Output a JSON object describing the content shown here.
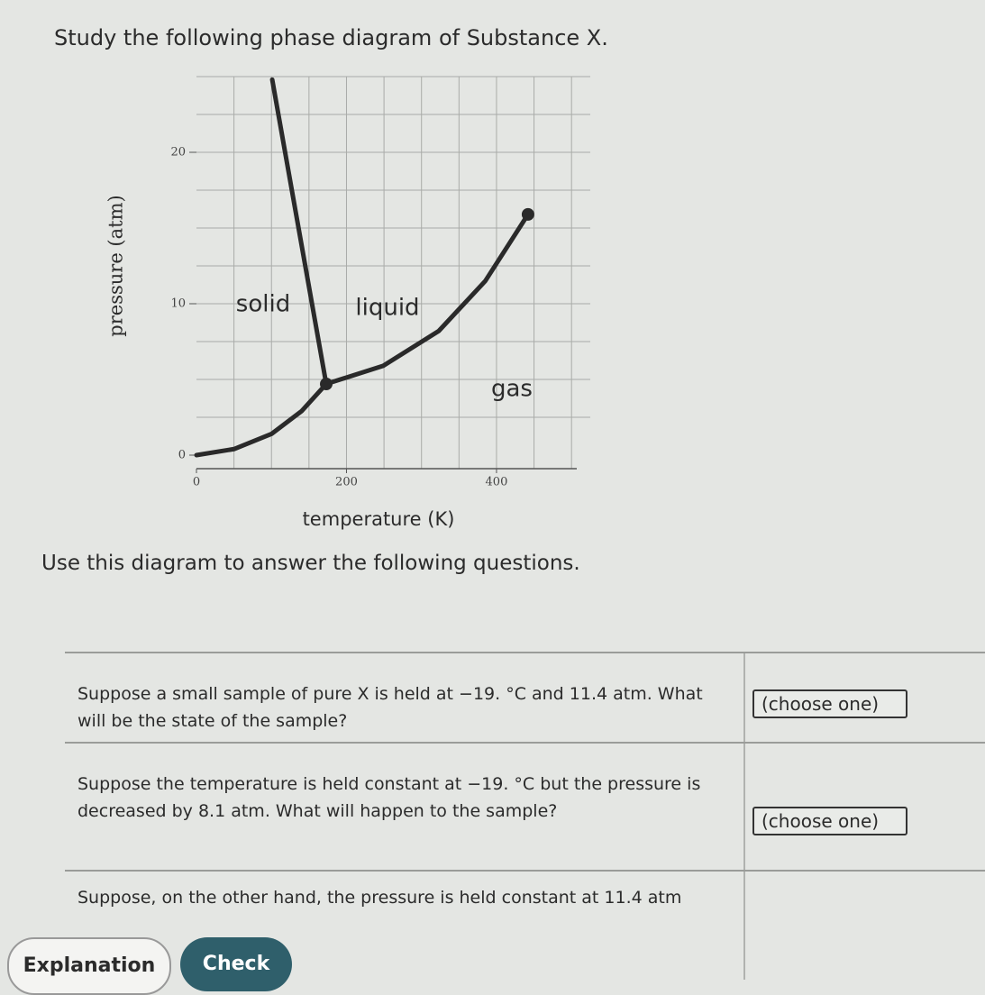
{
  "header": {
    "title": "Study the following phase diagram of Substance X."
  },
  "chart_data": {
    "type": "line",
    "x_label": "temperature (K)",
    "y_label": "pressure (atm)",
    "xlim": [
      0,
      525
    ],
    "ylim": [
      0,
      25
    ],
    "xticks": [
      0,
      200,
      400
    ],
    "yticks": [
      0,
      10,
      20
    ],
    "xgrid": [
      50,
      100,
      150,
      200,
      250,
      300,
      350,
      400,
      450,
      500
    ],
    "ygrid": [
      2.5,
      5,
      7.5,
      10,
      12.5,
      15,
      17.5,
      20,
      22.5,
      25
    ],
    "grid": true,
    "series": [
      {
        "color": "#2a2a2a",
        "x": [
          0,
          50,
          100,
          140,
          173
        ],
        "values": [
          0,
          0.4,
          1.4,
          2.9,
          4.7
        ]
      },
      {
        "color": "#2a2a2a",
        "x": [
          173,
          101
        ],
        "values": [
          4.7,
          24.8
        ]
      },
      {
        "color": "#2a2a2a",
        "x": [
          173,
          249,
          323,
          385,
          442
        ],
        "values": [
          4.7,
          5.9,
          8.2,
          11.5,
          15.9
        ]
      }
    ],
    "points": {
      "color": "#2a2a2a",
      "x": [
        173,
        442
      ],
      "values": [
        4.7,
        15.9
      ]
    },
    "annotations": [
      "solid",
      "liquid",
      "gas"
    ]
  },
  "instructions": "Use this diagram to answer the following questions.",
  "table": {
    "rows": [
      [
        "Suppose a small sample of pure X is held at −19. °C and 11.4 atm. What will be the state of the sample?",
        "(choose one)"
      ],
      [
        "Suppose the temperature is held constant at −19. °C but the pressure is decreased by 8.1 atm. What will happen to the sample?",
        "(choose one)"
      ],
      [
        "Suppose, on the other hand, the pressure is held constant at 11.4 atm",
        ""
      ]
    ]
  },
  "buttons": [
    "Explanation",
    "Check"
  ]
}
